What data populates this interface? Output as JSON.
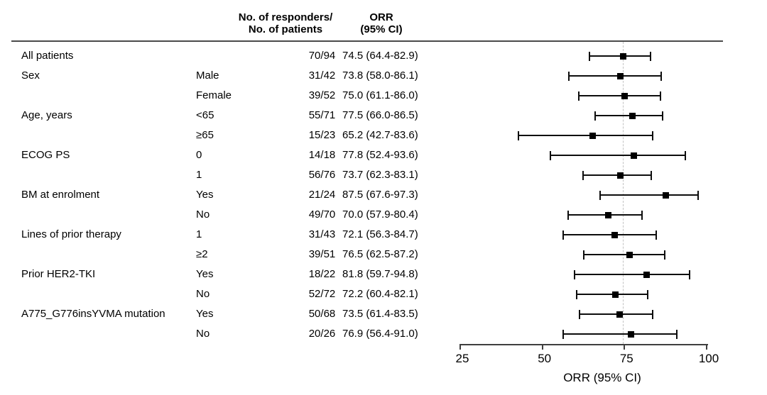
{
  "header": {
    "responders_line1": "No. of responders/",
    "responders_line2": "No. of patients",
    "orr_line1": "ORR",
    "orr_line2": "(95% CI)"
  },
  "colors": {
    "text": "#000000",
    "header_rule": "#4a4a4a",
    "axis": "#3f3f3f",
    "marker": "#000000",
    "reference_line": "#c2c2c2"
  },
  "chart_data": {
    "type": "forest",
    "title": "",
    "xlabel": "ORR (95% CI)",
    "xlim": [
      25,
      100
    ],
    "xticks": [
      25,
      50,
      75,
      100
    ],
    "tick_labels": [
      "25",
      "50",
      "75",
      "100"
    ],
    "reference_value": 74.5,
    "grid": false,
    "rows": [
      {
        "group": "All patients",
        "subgroup": "",
        "n": "70/94",
        "orr_text": "74.5 (64.4-82.9)",
        "est": 74.5,
        "lo": 64.4,
        "hi": 82.9
      },
      {
        "group": "Sex",
        "subgroup": "Male",
        "n": "31/42",
        "orr_text": "73.8 (58.0-86.1)",
        "est": 73.8,
        "lo": 58.0,
        "hi": 86.1
      },
      {
        "group": "",
        "subgroup": "Female",
        "n": "39/52",
        "orr_text": "75.0 (61.1-86.0)",
        "est": 75.0,
        "lo": 61.1,
        "hi": 86.0
      },
      {
        "group": "Age, years",
        "subgroup": "<65",
        "n": "55/71",
        "orr_text": "77.5 (66.0-86.5)",
        "est": 77.5,
        "lo": 66.0,
        "hi": 86.5
      },
      {
        "group": "",
        "subgroup": "≥65",
        "n": "15/23",
        "orr_text": "65.2 (42.7-83.6)",
        "est": 65.2,
        "lo": 42.7,
        "hi": 83.6
      },
      {
        "group": "ECOG PS",
        "subgroup": "0",
        "n": "14/18",
        "orr_text": "77.8 (52.4-93.6)",
        "est": 77.8,
        "lo": 52.4,
        "hi": 93.6
      },
      {
        "group": "",
        "subgroup": "1",
        "n": "56/76",
        "orr_text": "73.7 (62.3-83.1)",
        "est": 73.7,
        "lo": 62.3,
        "hi": 83.1
      },
      {
        "group": "BM at enrolment",
        "subgroup": "Yes",
        "n": "21/24",
        "orr_text": "87.5 (67.6-97.3)",
        "est": 87.5,
        "lo": 67.6,
        "hi": 97.3
      },
      {
        "group": "",
        "subgroup": "No",
        "n": "49/70",
        "orr_text": "70.0 (57.9-80.4)",
        "est": 70.0,
        "lo": 57.9,
        "hi": 80.4
      },
      {
        "group": "Lines of prior therapy",
        "subgroup": "1",
        "n": "31/43",
        "orr_text": "72.1 (56.3-84.7)",
        "est": 72.1,
        "lo": 56.3,
        "hi": 84.7
      },
      {
        "group": "",
        "subgroup": "≥2",
        "n": "39/51",
        "orr_text": "76.5 (62.5-87.2)",
        "est": 76.5,
        "lo": 62.5,
        "hi": 87.2
      },
      {
        "group": "Prior HER2-TKI",
        "subgroup": "Yes",
        "n": "18/22",
        "orr_text": "81.8 (59.7-94.8)",
        "est": 81.8,
        "lo": 59.7,
        "hi": 94.8
      },
      {
        "group": "",
        "subgroup": "No",
        "n": "52/72",
        "orr_text": "72.2 (60.4-82.1)",
        "est": 72.2,
        "lo": 60.4,
        "hi": 82.1
      },
      {
        "group": "A775_G776insYVMA mutation",
        "subgroup": "Yes",
        "n": "50/68",
        "orr_text": "73.5 (61.4-83.5)",
        "est": 73.5,
        "lo": 61.4,
        "hi": 83.5
      },
      {
        "group": "",
        "subgroup": "No",
        "n": "20/26",
        "orr_text": "76.9 (56.4-91.0)",
        "est": 76.9,
        "lo": 56.4,
        "hi": 91.0
      }
    ]
  }
}
